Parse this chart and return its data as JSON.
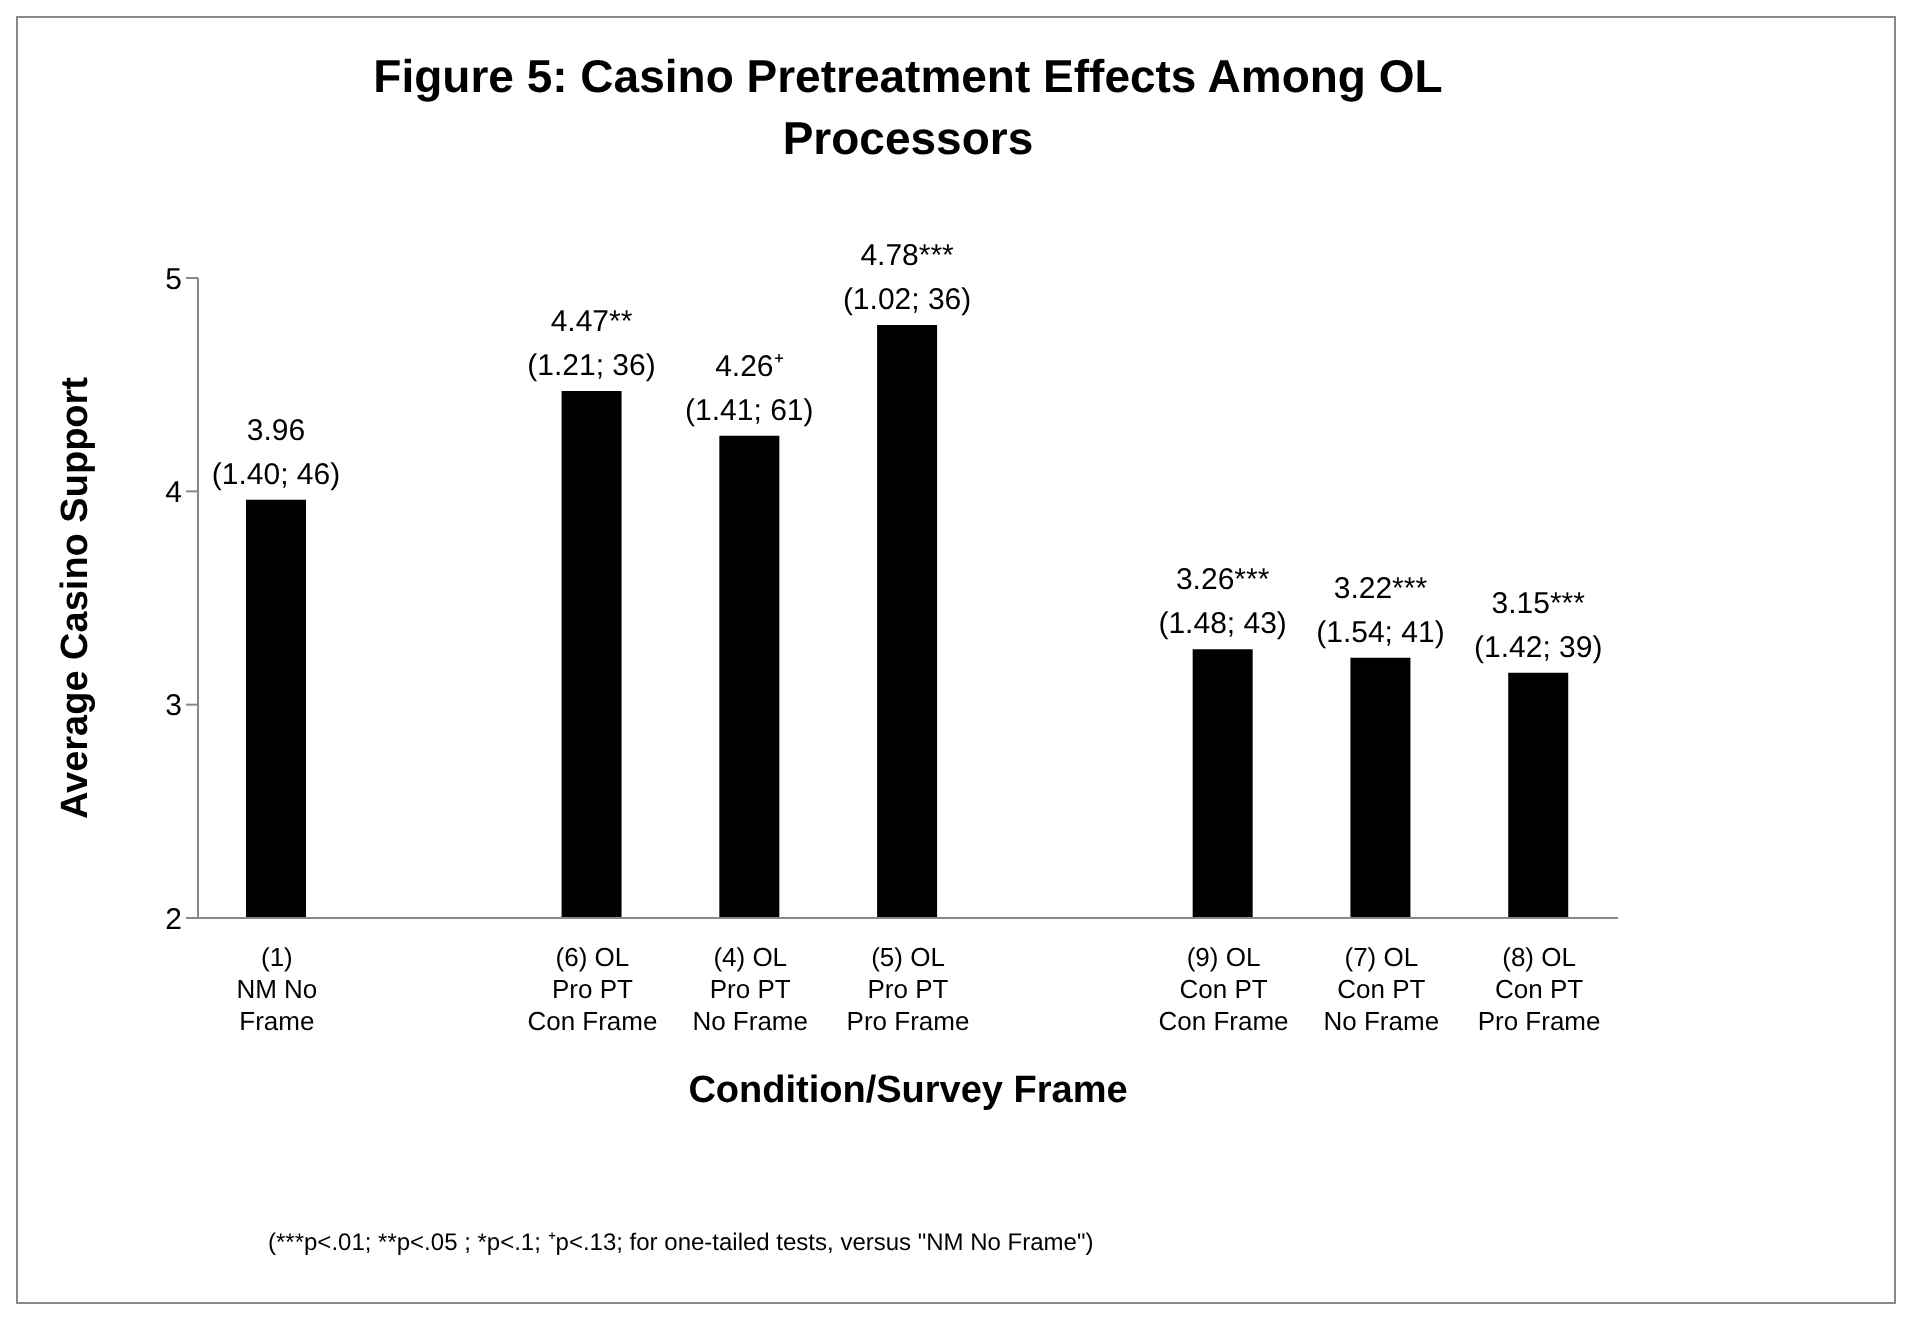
{
  "chart_data": {
    "type": "bar",
    "title": "Figure 5: Casino Pretreatment Effects Among OL Processors",
    "xlabel": "Condition/Survey Frame",
    "ylabel": "Average Casino Support",
    "categories": [
      "(1)\nNM No\nFrame",
      null,
      "(6) OL\nPro PT\nCon Frame",
      "(4) OL\nPro PT\nNo Frame",
      "(5) OL\nPro PT\nPro Frame",
      null,
      "(9) OL\nCon PT\nCon Frame",
      "(7) OL\nCon PT\nNo Frame",
      "(8) OL\nCon PT\nPro Frame"
    ],
    "values": [
      3.96,
      null,
      4.47,
      4.26,
      4.78,
      null,
      3.26,
      3.22,
      3.15
    ],
    "value_labels": [
      "3.96\n(1.40; 46)",
      null,
      "4.47**\n(1.21; 36)",
      "4.26⁺\n(1.41; 61)",
      "4.78***\n(1.02; 36)",
      null,
      "3.26***\n(1.48; 43)",
      "3.22***\n(1.54; 41)",
      "3.15***\n(1.42; 39)"
    ],
    "color": "#000000",
    "ylim": [
      2,
      5
    ],
    "yticks": [
      2,
      3,
      4,
      5
    ],
    "annotations": [
      "(***p<.01; **p<.05 ; *p<.1; ⁺p<.13; for one-tailed tests, versus \"NM No Frame\")"
    ]
  }
}
